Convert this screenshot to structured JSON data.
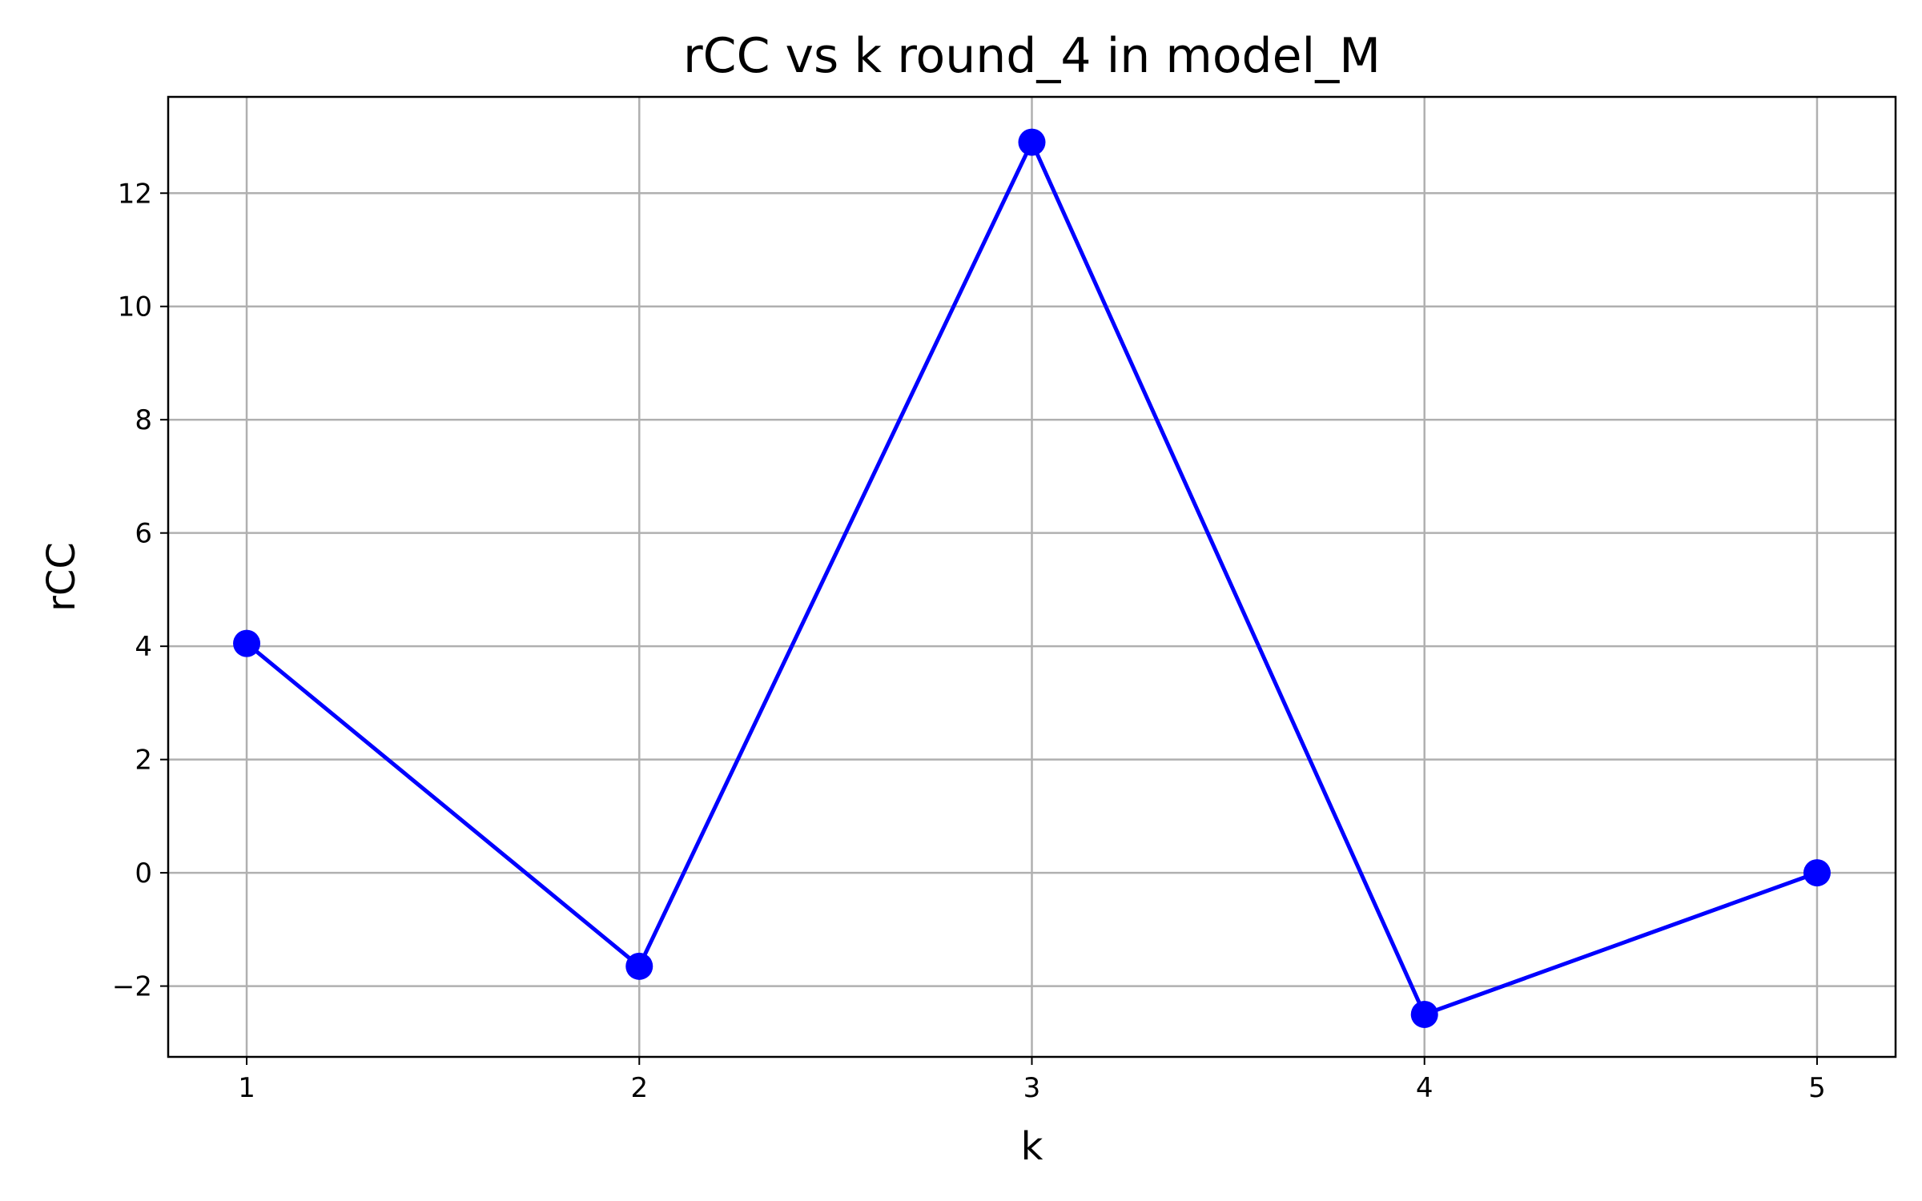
{
  "chart_data": {
    "type": "line",
    "title": "rCC vs k round_4 in model_M",
    "xlabel": "k",
    "ylabel": "rCC",
    "x": [
      1,
      2,
      3,
      4,
      5
    ],
    "xticks": [
      "1",
      "2",
      "3",
      "4",
      "5"
    ],
    "xlim": [
      0.8,
      5.2
    ],
    "ylim": [
      -3.25,
      13.7
    ],
    "yticks": [
      -2,
      0,
      2,
      4,
      6,
      8,
      10,
      12
    ],
    "ytick_labels": [
      "−2",
      "0",
      "2",
      "4",
      "6",
      "8",
      "10",
      "12"
    ],
    "grid": true,
    "series": [
      {
        "values": [
          4.05,
          -1.65,
          12.9,
          -2.5,
          0.0
        ],
        "color": "#0000ff",
        "marker": "circle"
      }
    ]
  }
}
